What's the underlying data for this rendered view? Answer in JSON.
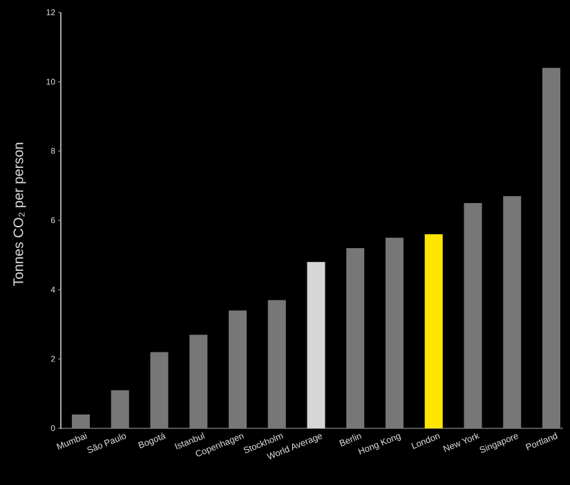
{
  "chart_data": {
    "type": "bar",
    "ylabel": "Tonnes CO₂ per person",
    "ylim": [
      0,
      12
    ],
    "yticks": [
      "0",
      "2",
      "4",
      "6",
      "8",
      "10",
      "12"
    ],
    "categories": [
      "Mumbai",
      "São Paulo",
      "Bogotá",
      "Istanbul",
      "Copenhagen",
      "Stockholm",
      "World Average",
      "Berlin",
      "Hong Kong",
      "London",
      "New York",
      "Singapore",
      "Portland"
    ],
    "values": [
      0.4,
      1.1,
      2.2,
      2.7,
      3.4,
      3.7,
      4.8,
      5.2,
      5.5,
      5.6,
      6.5,
      6.7,
      10.4
    ],
    "colors": {
      "default": "#777777",
      "World Average": "#d4d6d8",
      "London": "#ffe600",
      "axis": "#aaaaaa",
      "text": "#dddddd"
    },
    "grid": false,
    "legend": "none"
  }
}
